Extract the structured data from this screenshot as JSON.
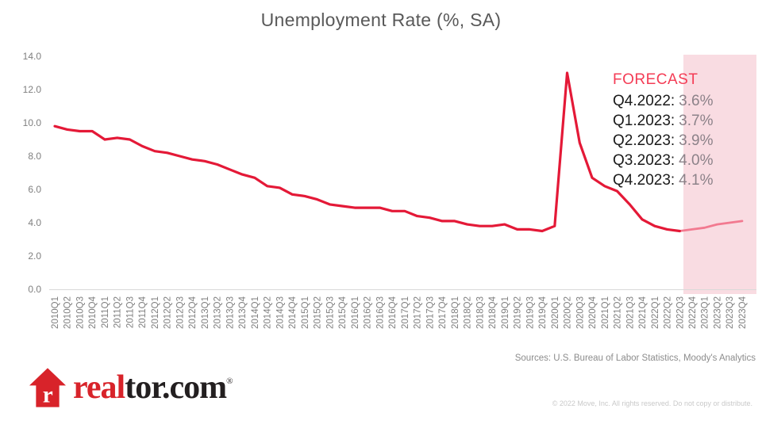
{
  "chart_data": {
    "type": "line",
    "title": "Unemployment Rate (%, SA)",
    "xlabel": "",
    "ylabel": "",
    "ylim": [
      0,
      14
    ],
    "y_ticks": [
      0,
      2,
      4,
      6,
      8,
      10,
      12,
      14
    ],
    "grid": false,
    "legend": "none",
    "categories": [
      "2010Q1",
      "2010Q2",
      "2010Q3",
      "2010Q4",
      "2011Q1",
      "2011Q2",
      "2011Q3",
      "2011Q4",
      "2012Q1",
      "2012Q2",
      "2012Q3",
      "2012Q4",
      "2013Q1",
      "2013Q2",
      "2013Q3",
      "2013Q4",
      "2014Q1",
      "2014Q2",
      "2014Q3",
      "2014Q4",
      "2015Q1",
      "2015Q2",
      "2015Q3",
      "2015Q4",
      "2016Q1",
      "2016Q2",
      "2016Q3",
      "2016Q4",
      "2017Q1",
      "2017Q2",
      "2017Q3",
      "2017Q4",
      "2018Q1",
      "2018Q2",
      "2018Q3",
      "2018Q4",
      "2019Q1",
      "2019Q2",
      "2019Q3",
      "2019Q4",
      "2020Q1",
      "2020Q2",
      "2020Q3",
      "2020Q4",
      "2021Q1",
      "2021Q2",
      "2021Q3",
      "2021Q4",
      "2022Q1",
      "2022Q2",
      "2022Q3",
      "2022Q4",
      "2023Q1",
      "2023Q2",
      "2023Q3",
      "2023Q4"
    ],
    "values": [
      9.8,
      9.6,
      9.5,
      9.5,
      9.0,
      9.1,
      9.0,
      8.6,
      8.3,
      8.2,
      8.0,
      7.8,
      7.7,
      7.5,
      7.2,
      6.9,
      6.7,
      6.2,
      6.1,
      5.7,
      5.6,
      5.4,
      5.1,
      5.0,
      4.9,
      4.9,
      4.9,
      4.7,
      4.7,
      4.4,
      4.3,
      4.1,
      4.1,
      3.9,
      3.8,
      3.8,
      3.9,
      3.6,
      3.6,
      3.5,
      3.8,
      13.0,
      8.8,
      6.7,
      6.2,
      5.9,
      5.1,
      4.2,
      3.8,
      3.6,
      3.5,
      3.6,
      3.7,
      3.9,
      4.0,
      4.1
    ],
    "forecast_start_index": 51,
    "line_color": "#e41937",
    "forecast_line_color": "#f27a90",
    "forecast_band_color": "#f9dce2",
    "axis_line_color": "#d9d9d9"
  },
  "forecast": {
    "heading": "FORECAST",
    "heading_color": "#f43c55",
    "entries": [
      {
        "label": "Q4.2022:",
        "value": "3.6%"
      },
      {
        "label": "Q1.2023:",
        "value": "3.7%"
      },
      {
        "label": "Q2.2023:",
        "value": "3.9%"
      },
      {
        "label": "Q3.2023:",
        "value": "4.0%"
      },
      {
        "label": "Q4.2023:",
        "value": "4.1%"
      }
    ]
  },
  "footer": {
    "logo": {
      "icon": "realtor-house-icon",
      "real": "real",
      "tor": "tor.com",
      "registered": "®",
      "brand_red": "#d8232a",
      "brand_black": "#231f20"
    },
    "sources": "Sources: U.S. Bureau of Labor Statistics, Moody's Analytics",
    "copyright": "© 2022 Move, Inc. All rights reserved. Do not copy or distribute."
  }
}
